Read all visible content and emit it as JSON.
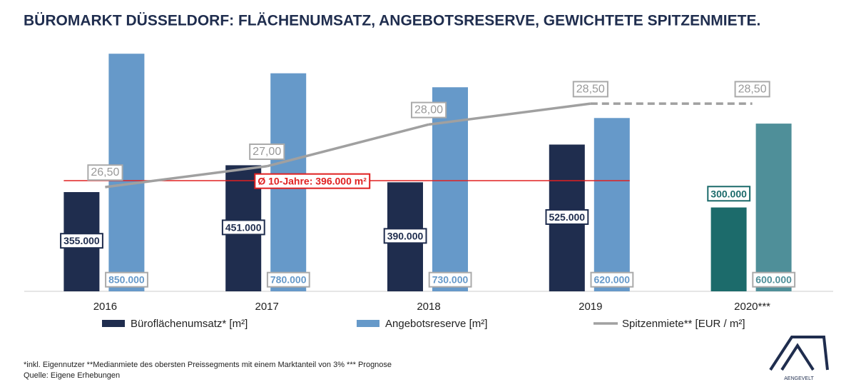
{
  "chart_data": {
    "type": "bar-line",
    "title": "BÜROMARKT DÜSSELDORF: FLÄCHENUMSATZ, ANGEBOTSRESERVE, GEWICHTETE SPITZENMIETE.",
    "categories": [
      "2016",
      "2017",
      "2018",
      "2019",
      "2020***"
    ],
    "series": [
      {
        "name": "Büroflächenumsatz* [m²]",
        "type": "bar",
        "color": "#1f2d4e",
        "colors": [
          "#1f2d4e",
          "#1f2d4e",
          "#1f2d4e",
          "#1f2d4e",
          "#1c6b6b"
        ],
        "values": [
          355000,
          451000,
          390000,
          525000,
          300000
        ],
        "value_labels": [
          "355.000",
          "451.000",
          "390.000",
          "525.000",
          "300.000"
        ]
      },
      {
        "name": "Angebotsreserve [m²]",
        "type": "bar",
        "color": "#6699c9",
        "colors": [
          "#6699c9",
          "#6699c9",
          "#6699c9",
          "#6699c9",
          "#4f8f99"
        ],
        "values": [
          850000,
          780000,
          730000,
          620000,
          600000
        ],
        "value_labels": [
          "850.000",
          "780.000",
          "730.000",
          "620.000",
          "600.000"
        ]
      },
      {
        "name": "Spitzenmiete** [EUR / m²]",
        "type": "line",
        "axis": "y2",
        "color": "#a0a0a0",
        "dashed": [
          false,
          false,
          false,
          false,
          true
        ],
        "values": [
          26.5,
          27,
          28,
          28.5,
          28.5
        ],
        "value_labels": [
          "26,50",
          "27,00",
          "28,00",
          "28,50",
          "28,50"
        ]
      }
    ],
    "reference_line": {
      "value": 396000,
      "label": "Ø 10-Jahre: 396.000 m²",
      "color": "#e02020"
    },
    "ylim": [
      0,
      940000
    ],
    "y2lim": [
      24,
      30.3
    ],
    "footnotes": [
      "*inkl. Eigennutzer **Medianmiete des obersten Preissegments mit einem Marktanteil von 3% *** Prognose",
      "Quelle: Eigene Erhebungen"
    ],
    "logo": "AENGEVELT"
  }
}
